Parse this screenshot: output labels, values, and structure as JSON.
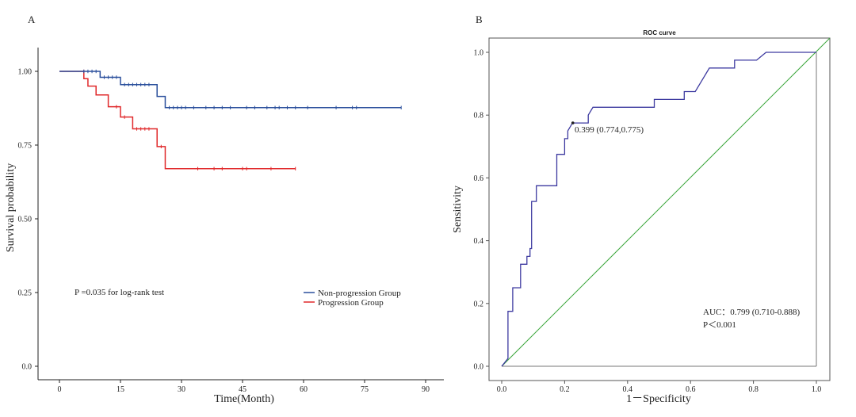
{
  "panel_a": {
    "label": "A",
    "annotation": "P =0.035 for log-rank test",
    "legend": [
      {
        "label": "Non-progression Group"
      },
      {
        "label": "Progression Group"
      }
    ],
    "colors": {
      "nonprog": "#2a4f9c",
      "prog": "#e0292b"
    }
  },
  "panel_b": {
    "label": "B",
    "cutoff_label": "0.399 (0.774,0.775)",
    "auc_text": "AUC：0.799 (0.710-0.888)",
    "p_text": "P＜0.001",
    "colors": {
      "roc": "#3d3aa0",
      "diag": "#3aa63a",
      "frame": "#555555"
    }
  },
  "chart_data": [
    {
      "type": "line",
      "xlabel": "Time(Month)",
      "ylabel": "Survival probability",
      "xlim": [
        0,
        90
      ],
      "ylim": [
        0,
        1
      ],
      "xticks": [
        "0",
        "15",
        "30",
        "45",
        "60",
        "75",
        "90"
      ],
      "yticks": [
        "0.0",
        "0.25",
        "0.50",
        "0.75",
        "1.00"
      ],
      "series": [
        {
          "name": "Non-progression Group",
          "steps": [
            [
              0,
              1.0
            ],
            [
              10,
              0.98
            ],
            [
              15,
              0.955
            ],
            [
              24,
              0.915
            ],
            [
              26,
              0.877
            ],
            [
              84,
              0.877
            ]
          ],
          "censor": [
            [
              6,
              1.0
            ],
            [
              7,
              1.0
            ],
            [
              8,
              1.0
            ],
            [
              9,
              1.0
            ],
            [
              11,
              0.98
            ],
            [
              12,
              0.98
            ],
            [
              13,
              0.98
            ],
            [
              14,
              0.98
            ],
            [
              16,
              0.955
            ],
            [
              17,
              0.955
            ],
            [
              18,
              0.955
            ],
            [
              19,
              0.955
            ],
            [
              20,
              0.955
            ],
            [
              21,
              0.955
            ],
            [
              22,
              0.955
            ],
            [
              27,
              0.877
            ],
            [
              28,
              0.877
            ],
            [
              29,
              0.877
            ],
            [
              30,
              0.877
            ],
            [
              31,
              0.877
            ],
            [
              33,
              0.877
            ],
            [
              36,
              0.877
            ],
            [
              38,
              0.877
            ],
            [
              40,
              0.877
            ],
            [
              42,
              0.877
            ],
            [
              46,
              0.877
            ],
            [
              48,
              0.877
            ],
            [
              51,
              0.877
            ],
            [
              53,
              0.877
            ],
            [
              54,
              0.877
            ],
            [
              56,
              0.877
            ],
            [
              58,
              0.877
            ],
            [
              61,
              0.877
            ],
            [
              68,
              0.877
            ],
            [
              72,
              0.877
            ],
            [
              73,
              0.877
            ],
            [
              84,
              0.877
            ]
          ]
        },
        {
          "name": "Progression Group",
          "steps": [
            [
              0,
              1.0
            ],
            [
              6,
              0.975
            ],
            [
              7,
              0.95
            ],
            [
              9,
              0.92
            ],
            [
              12,
              0.88
            ],
            [
              15,
              0.845
            ],
            [
              18,
              0.805
            ],
            [
              24,
              0.745
            ],
            [
              26,
              0.67
            ],
            [
              58,
              0.67
            ]
          ],
          "censor": [
            [
              6,
              1.0
            ],
            [
              14,
              0.88
            ],
            [
              16,
              0.845
            ],
            [
              19,
              0.805
            ],
            [
              20,
              0.805
            ],
            [
              21,
              0.805
            ],
            [
              22,
              0.805
            ],
            [
              25,
              0.745
            ],
            [
              34,
              0.67
            ],
            [
              38,
              0.67
            ],
            [
              40,
              0.67
            ],
            [
              45,
              0.67
            ],
            [
              46,
              0.67
            ],
            [
              52,
              0.67
            ],
            [
              58,
              0.67
            ]
          ]
        }
      ]
    },
    {
      "type": "line",
      "title": "ROC curve",
      "xlabel": "1－Specificity",
      "ylabel": "Sensitivity",
      "xlim": [
        0,
        1
      ],
      "ylim": [
        0,
        1
      ],
      "xticks": [
        "0.0",
        "0.2",
        "0.4",
        "0.6",
        "0.8",
        "1.0"
      ],
      "yticks": [
        "0.0",
        "0.2",
        "0.4",
        "0.6",
        "0.8",
        "1.0"
      ],
      "series": [
        {
          "points": [
            [
              0.0,
              0.0
            ],
            [
              0.02,
              0.025
            ],
            [
              0.02,
              0.175
            ],
            [
              0.035,
              0.175
            ],
            [
              0.035,
              0.25
            ],
            [
              0.06,
              0.25
            ],
            [
              0.06,
              0.325
            ],
            [
              0.08,
              0.325
            ],
            [
              0.08,
              0.35
            ],
            [
              0.09,
              0.35
            ],
            [
              0.09,
              0.375
            ],
            [
              0.095,
              0.375
            ],
            [
              0.095,
              0.525
            ],
            [
              0.11,
              0.525
            ],
            [
              0.11,
              0.575
            ],
            [
              0.175,
              0.575
            ],
            [
              0.175,
              0.675
            ],
            [
              0.2,
              0.675
            ],
            [
              0.2,
              0.725
            ],
            [
              0.21,
              0.725
            ],
            [
              0.21,
              0.75
            ],
            [
              0.225,
              0.775
            ],
            [
              0.275,
              0.775
            ],
            [
              0.275,
              0.8
            ],
            [
              0.29,
              0.825
            ],
            [
              0.485,
              0.825
            ],
            [
              0.485,
              0.85
            ],
            [
              0.58,
              0.85
            ],
            [
              0.58,
              0.875
            ],
            [
              0.615,
              0.875
            ],
            [
              0.66,
              0.95
            ],
            [
              0.74,
              0.95
            ],
            [
              0.74,
              0.975
            ],
            [
              0.81,
              0.975
            ],
            [
              0.84,
              1.0
            ],
            [
              1.0,
              1.0
            ]
          ]
        },
        {
          "points": [
            [
              0,
              0
            ],
            [
              1,
              1
            ]
          ]
        }
      ],
      "cutoff_point": [
        0.226,
        0.775
      ]
    }
  ]
}
